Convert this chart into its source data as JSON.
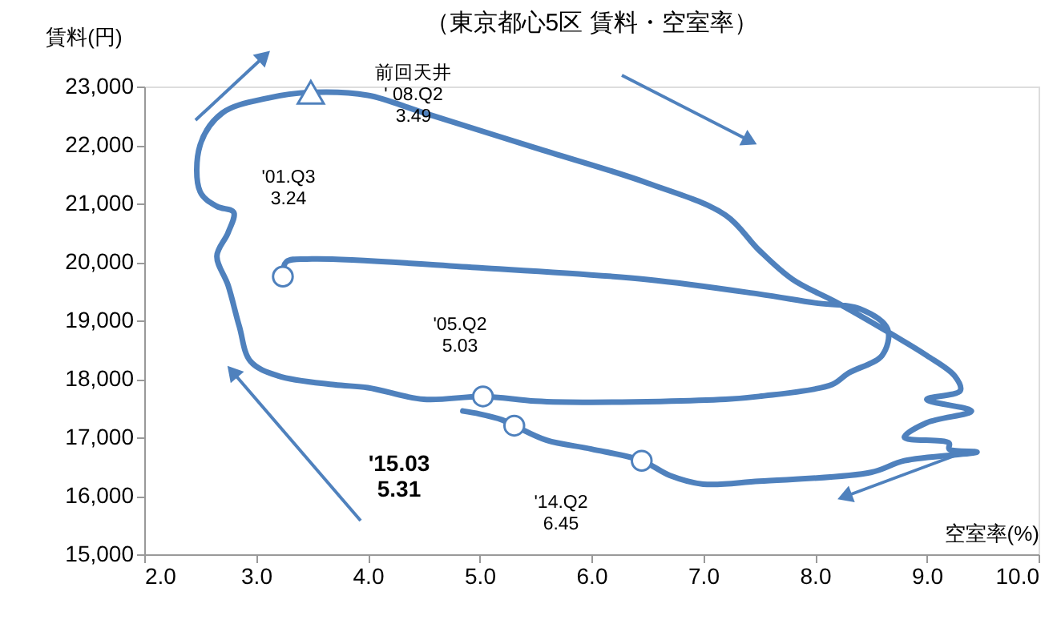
{
  "chart_data": {
    "type": "line",
    "title": "（東京都心5区 賃料・空室率）",
    "xlabel": "空室率(%)",
    "ylabel": "賃料(円)",
    "xlim": [
      2,
      10
    ],
    "ylim": [
      15000,
      23000
    ],
    "xticks": [
      {
        "value": 2,
        "label": "2.0"
      },
      {
        "value": 3,
        "label": "3.0"
      },
      {
        "value": 4,
        "label": "4.0"
      },
      {
        "value": 5,
        "label": "5.0"
      },
      {
        "value": 6,
        "label": "6.0"
      },
      {
        "value": 7,
        "label": "7.0"
      },
      {
        "value": 8,
        "label": "8.0"
      },
      {
        "value": 9,
        "label": "9.0"
      },
      {
        "value": 10,
        "label": "10.0"
      }
    ],
    "yticks": [
      {
        "value": 15000,
        "label": "15,000"
      },
      {
        "value": 16000,
        "label": "16,000"
      },
      {
        "value": 17000,
        "label": "17,000"
      },
      {
        "value": 18000,
        "label": "18,000"
      },
      {
        "value": 19000,
        "label": "19,000"
      },
      {
        "value": 20000,
        "label": "20,000"
      },
      {
        "value": 21000,
        "label": "21,000"
      },
      {
        "value": 22000,
        "label": "22,000"
      },
      {
        "value": 23000,
        "label": "23,000"
      }
    ],
    "series": [
      {
        "color": "#4f81bd",
        "x": [
          3.24,
          3.27,
          3.5,
          5.0,
          6.5,
          7.5,
          8.0,
          8.4,
          8.65,
          8.6,
          8.3,
          8.15,
          7.5,
          7.2,
          6.0,
          5.5,
          5.03,
          4.5,
          4.0,
          3.7,
          3.2,
          2.95,
          2.85,
          2.75,
          2.65,
          2.75,
          2.8,
          2.65,
          2.5,
          2.5,
          2.7,
          3.1,
          3.49,
          4.0,
          4.5,
          5.5,
          6.5,
          7.2,
          7.5,
          7.8,
          8.2,
          8.7,
          9.0,
          9.25,
          9.3,
          9.0,
          9.4,
          9.0,
          8.8,
          9.2,
          9.2,
          9.45,
          8.8,
          8.5,
          7.5,
          7.0,
          6.7,
          6.45,
          6.0,
          5.6,
          5.31,
          5.2,
          5.0,
          4.85
        ],
        "values": [
          19750,
          20000,
          20050,
          19900,
          19700,
          19450,
          19300,
          19200,
          18850,
          18400,
          18100,
          17900,
          17700,
          17650,
          17600,
          17620,
          17700,
          17650,
          17850,
          17900,
          18050,
          18300,
          18900,
          19600,
          20100,
          20500,
          20850,
          20950,
          21200,
          22000,
          22550,
          22800,
          22900,
          22850,
          22550,
          21950,
          21350,
          20800,
          20200,
          19700,
          19300,
          18750,
          18400,
          18050,
          17800,
          17650,
          17450,
          17250,
          17000,
          16900,
          16800,
          16750,
          16600,
          16400,
          16250,
          16200,
          16350,
          16600,
          16800,
          16950,
          17200,
          17300,
          17400,
          17450
        ]
      },
      {
        "type": "scatter",
        "marker": "circle",
        "color": "#4f81bd",
        "x": [
          3.24,
          5.03,
          6.45,
          5.31
        ],
        "values": [
          19750,
          17700,
          16600,
          17200
        ]
      },
      {
        "type": "scatter",
        "marker": "triangle",
        "color": "#4f81bd",
        "x": [
          3.49
        ],
        "values": [
          22900
        ]
      }
    ],
    "annotations": [
      "前回天井\n' 08.Q2\n3.49",
      "'01.Q3\n3.24",
      "'05.Q2\n5.03",
      "'15.03\n5.31",
      "'14.Q2\n6.45"
    ]
  }
}
